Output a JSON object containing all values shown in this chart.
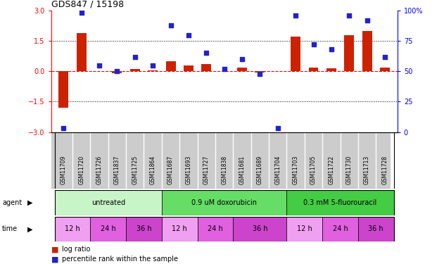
{
  "title": "GDS847 / 15198",
  "samples": [
    "GSM11709",
    "GSM11720",
    "GSM11726",
    "GSM11837",
    "GSM11725",
    "GSM11864",
    "GSM11687",
    "GSM11693",
    "GSM11727",
    "GSM11838",
    "GSM11681",
    "GSM11689",
    "GSM11704",
    "GSM11703",
    "GSM11705",
    "GSM11722",
    "GSM11730",
    "GSM11713",
    "GSM11728"
  ],
  "log_ratios": [
    -1.8,
    1.9,
    0.0,
    -0.1,
    0.1,
    0.05,
    0.5,
    0.3,
    0.35,
    0.0,
    0.2,
    -0.05,
    0.0,
    1.7,
    0.2,
    0.15,
    1.8,
    2.0,
    0.2
  ],
  "percentile_ranks": [
    3,
    98,
    55,
    50,
    62,
    55,
    88,
    80,
    65,
    52,
    60,
    48,
    3,
    96,
    72,
    68,
    96,
    92,
    62
  ],
  "agent_groups": [
    {
      "label": "untreated",
      "start": 0,
      "end": 6,
      "color": "#c8f5c8"
    },
    {
      "label": "0.9 uM doxorubicin",
      "start": 6,
      "end": 13,
      "color": "#66dd66"
    },
    {
      "label": "0.3 mM 5-fluorouracil",
      "start": 13,
      "end": 19,
      "color": "#44cc44"
    }
  ],
  "time_groups": [
    {
      "label": "12 h",
      "start": 0,
      "end": 2,
      "color": "#f0a0f0"
    },
    {
      "label": "24 h",
      "start": 2,
      "end": 4,
      "color": "#e060e0"
    },
    {
      "label": "36 h",
      "start": 4,
      "end": 6,
      "color": "#cc44cc"
    },
    {
      "label": "12 h",
      "start": 6,
      "end": 8,
      "color": "#f0a0f0"
    },
    {
      "label": "24 h",
      "start": 8,
      "end": 10,
      "color": "#e060e0"
    },
    {
      "label": "36 h",
      "start": 10,
      "end": 13,
      "color": "#cc44cc"
    },
    {
      "label": "12 h",
      "start": 13,
      "end": 15,
      "color": "#f0a0f0"
    },
    {
      "label": "24 h",
      "start": 15,
      "end": 17,
      "color": "#e060e0"
    },
    {
      "label": "36 h",
      "start": 17,
      "end": 19,
      "color": "#cc44cc"
    }
  ],
  "bar_color": "#cc2200",
  "dot_color": "#2222cc",
  "ylim_left": [
    -3,
    3
  ],
  "ylim_right": [
    0,
    100
  ],
  "yticks_left": [
    -3,
    -1.5,
    0,
    1.5,
    3
  ],
  "yticks_right": [
    0,
    25,
    50,
    75,
    100
  ],
  "hlines_dotted": [
    -1.5,
    1.5
  ],
  "hline_dashed": 0,
  "sample_bg_color": "#cccccc",
  "legend_bar_label": "log ratio",
  "legend_dot_label": "percentile rank within the sample"
}
